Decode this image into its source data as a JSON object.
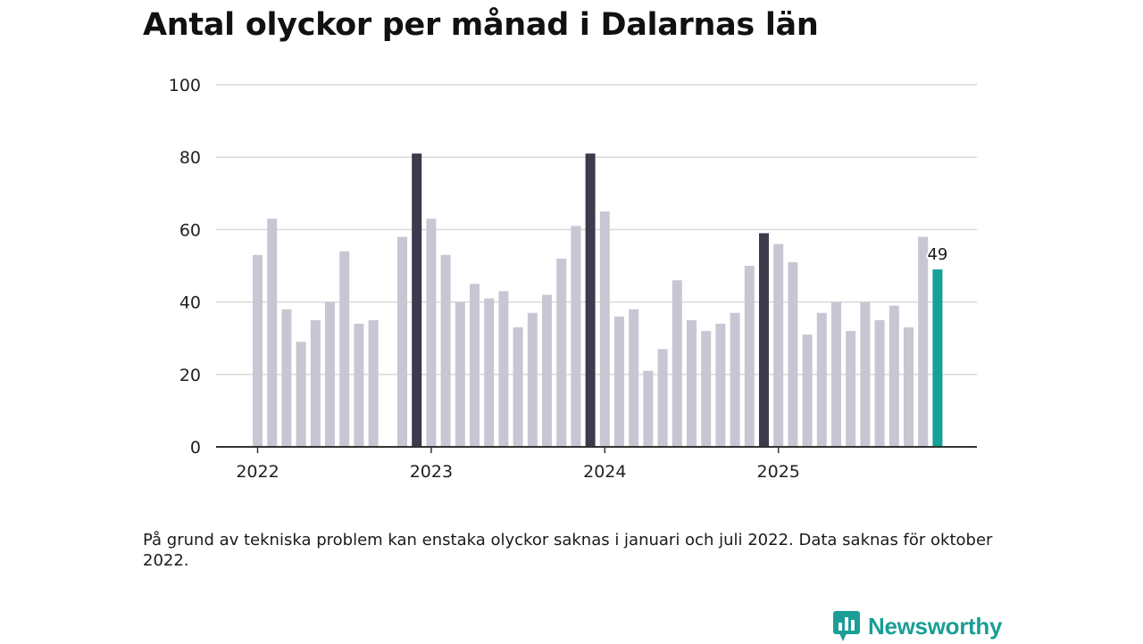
{
  "title": "Antal olyckor per månad i Dalarnas län",
  "note": "På grund av tekniska problem kan enstaka olyckor saknas i januari och juli 2022. Data saknas för oktober 2022.",
  "brand": {
    "name": "Newsworthy",
    "icon": "newsworthy-logo-icon",
    "color": "#1a9e96"
  },
  "colors": {
    "bar": "#c8c6d3",
    "highlight": "#3c3a4b",
    "latest": "#14a196",
    "grid": "#d9d9d9",
    "axis": "#333333"
  },
  "chart_data": {
    "type": "bar",
    "title": "Antal olyckor per månad i Dalarnas län",
    "xlabel": "",
    "ylabel": "",
    "ylim": [
      0,
      100
    ],
    "yticks": [
      "0",
      "20",
      "40",
      "60",
      "80",
      "100"
    ],
    "xtick_labels": [
      {
        "label": "2022",
        "index": 0
      },
      {
        "label": "2023",
        "index": 12
      },
      {
        "label": "2024",
        "index": 24
      },
      {
        "label": "2025",
        "index": 36
      }
    ],
    "categories": [
      "2022-01",
      "2022-02",
      "2022-03",
      "2022-04",
      "2022-05",
      "2022-06",
      "2022-07",
      "2022-08",
      "2022-09",
      "2022-10",
      "2022-11",
      "2022-12",
      "2023-01",
      "2023-02",
      "2023-03",
      "2023-04",
      "2023-05",
      "2023-06",
      "2023-07",
      "2023-08",
      "2023-09",
      "2023-10",
      "2023-11",
      "2023-12",
      "2024-01",
      "2024-02",
      "2024-03",
      "2024-04",
      "2024-05",
      "2024-06",
      "2024-07",
      "2024-08",
      "2024-09",
      "2024-10",
      "2024-11",
      "2024-12",
      "2025-01",
      "2025-02",
      "2025-03",
      "2025-04",
      "2025-05",
      "2025-06",
      "2025-07",
      "2025-08",
      "2025-09",
      "2025-10",
      "2025-11",
      "2025-12"
    ],
    "values": [
      53,
      63,
      38,
      29,
      35,
      40,
      54,
      34,
      35,
      null,
      58,
      81,
      63,
      53,
      40,
      45,
      41,
      43,
      33,
      37,
      42,
      52,
      61,
      81,
      65,
      36,
      38,
      21,
      27,
      46,
      35,
      32,
      34,
      37,
      50,
      59,
      56,
      51,
      31,
      37,
      40,
      32,
      40,
      35,
      39,
      33,
      58,
      49
    ],
    "highlighted": [
      "2022-12",
      "2023-12",
      "2024-12"
    ],
    "latest": "2025-12",
    "annotation": {
      "category": "2025-12",
      "text": "49"
    }
  }
}
